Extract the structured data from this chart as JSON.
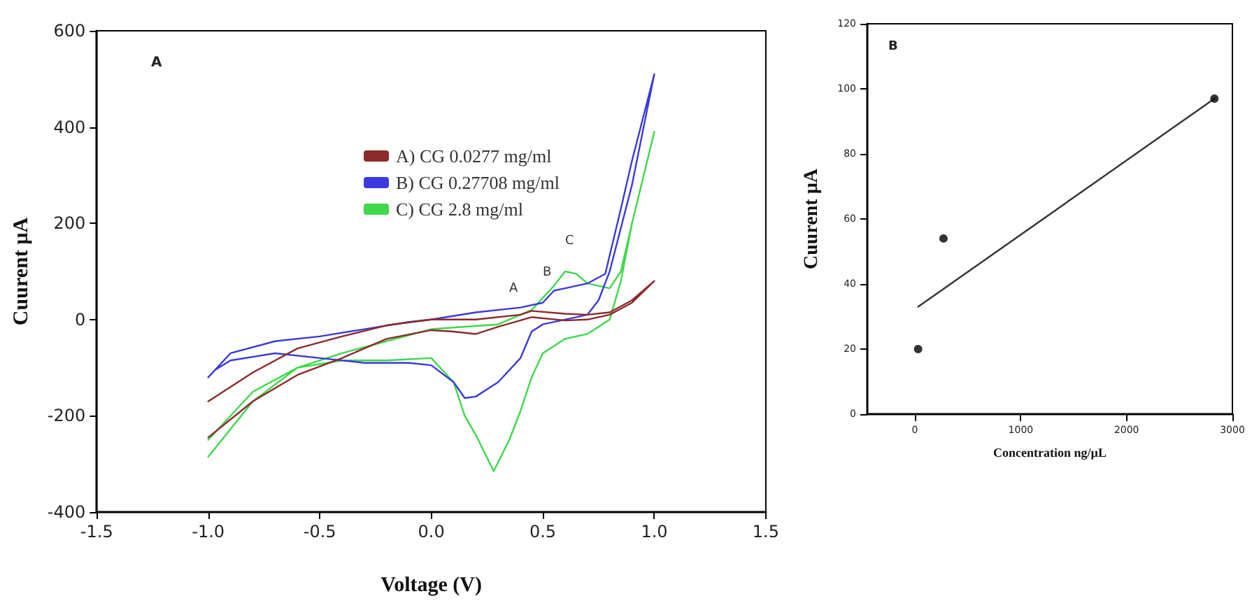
{
  "chart_data": [
    {
      "type": "line",
      "xlabel": "Voltage (V)",
      "ylabel": "Cuurent µA",
      "xlim": [
        -1.5,
        1.5
      ],
      "ylim": [
        -400,
        600
      ],
      "xticks": [
        {
          "value": -1.5,
          "label": "-1.5"
        },
        {
          "value": -1,
          "label": "-1.0"
        },
        {
          "value": -0.5,
          "label": "-0.5"
        },
        {
          "value": 0,
          "label": "0.0"
        },
        {
          "value": 0.5,
          "label": "0.5"
        },
        {
          "value": 1,
          "label": "1.0"
        },
        {
          "value": 1.5,
          "label": "1.5"
        }
      ],
      "yticks": [
        -400,
        -200,
        0,
        200,
        400,
        600
      ],
      "legend": "top",
      "grid": false,
      "marker": "none",
      "line_style": "solid",
      "series": [
        {
          "name": "A) CG 0.0277 mg/ml",
          "color": "#8b2a2a",
          "x": [
            -1,
            -0.8,
            -0.6,
            -0.4,
            -0.2,
            0,
            0.2,
            0.4,
            0.45,
            0.6,
            0.7,
            0.8,
            0.9,
            1,
            0.9,
            0.8,
            0.7,
            0.6,
            0.45,
            0.3,
            0.2,
            0.1,
            0,
            -0.2,
            -0.4,
            -0.6,
            -0.8,
            -1
          ],
          "values": [
            -170,
            -110,
            -60,
            -35,
            -12,
            0,
            0,
            10,
            18,
            12,
            10,
            15,
            40,
            80,
            35,
            10,
            0,
            -2,
            5,
            -15,
            -30,
            -25,
            -22,
            -40,
            -80,
            -115,
            -170,
            -245
          ]
        },
        {
          "name": "B) CG 0.27708 mg/ml",
          "color": "#3a3ae0",
          "x": [
            -1,
            -0.9,
            -0.7,
            -0.5,
            -0.3,
            -0.1,
            0,
            0.2,
            0.4,
            0.5,
            0.55,
            0.6,
            0.7,
            0.78,
            0.85,
            0.9,
            1,
            0.9,
            0.8,
            0.75,
            0.7,
            0.6,
            0.5,
            0.45,
            0.4,
            0.3,
            0.2,
            0.15,
            0.1,
            0,
            -0.1,
            -0.3,
            -0.5,
            -0.7,
            -0.9,
            -0.97
          ],
          "values": [
            -120,
            -70,
            -45,
            -35,
            -20,
            -5,
            0,
            15,
            25,
            35,
            60,
            65,
            75,
            95,
            230,
            330,
            510,
            280,
            100,
            40,
            10,
            0,
            -10,
            -25,
            -80,
            -130,
            -160,
            -163,
            -130,
            -95,
            -90,
            -90,
            -80,
            -70,
            -85,
            -105
          ]
        },
        {
          "name": "C) CG 2.8 mg/ml",
          "color": "#3ed84a",
          "x": [
            -1,
            -0.8,
            -0.6,
            -0.4,
            -0.2,
            0,
            0.3,
            0.45,
            0.55,
            0.6,
            0.65,
            0.7,
            0.8,
            0.85,
            0.9,
            1,
            0.9,
            0.85,
            0.8,
            0.7,
            0.6,
            0.5,
            0.45,
            0.4,
            0.35,
            0.28,
            0.2,
            0.15,
            0.1,
            0,
            -0.2,
            -0.4,
            -0.6,
            -0.8,
            -1
          ],
          "values": [
            -250,
            -150,
            -100,
            -70,
            -45,
            -20,
            -10,
            20,
            70,
            100,
            95,
            75,
            65,
            100,
            200,
            390,
            200,
            80,
            0,
            -30,
            -40,
            -70,
            -120,
            -190,
            -250,
            -315,
            -240,
            -200,
            -130,
            -80,
            -85,
            -85,
            -100,
            -170,
            -285
          ]
        }
      ],
      "annotations": [
        "A",
        {
          "text": "A",
          "x": 0.45,
          "y": 18
        },
        {
          "text": "B",
          "x": 0.5,
          "y": 35
        },
        {
          "text": "C",
          "x": 0.6,
          "y": 100
        }
      ]
    },
    {
      "type": "scatter",
      "xlabel": "Concentration ng/µL",
      "ylabel": "Cuurent µA",
      "xlim": [
        -450,
        3000
      ],
      "ylim": [
        0,
        120
      ],
      "xticks": [
        0,
        1000,
        2000,
        3000
      ],
      "yticks": [
        0,
        20,
        40,
        60,
        80,
        100,
        120
      ],
      "grid": false,
      "legend": false,
      "marker": "circle",
      "series": [
        {
          "color": "#000000",
          "x": [
            30,
            270,
            2830
          ],
          "values": [
            20,
            54,
            97
          ]
        },
        {
          "type": "line",
          "marker": "none",
          "color": "#333333",
          "x": [
            30,
            2830
          ],
          "values": [
            33,
            97
          ]
        }
      ],
      "annotations": [
        "B"
      ]
    }
  ]
}
